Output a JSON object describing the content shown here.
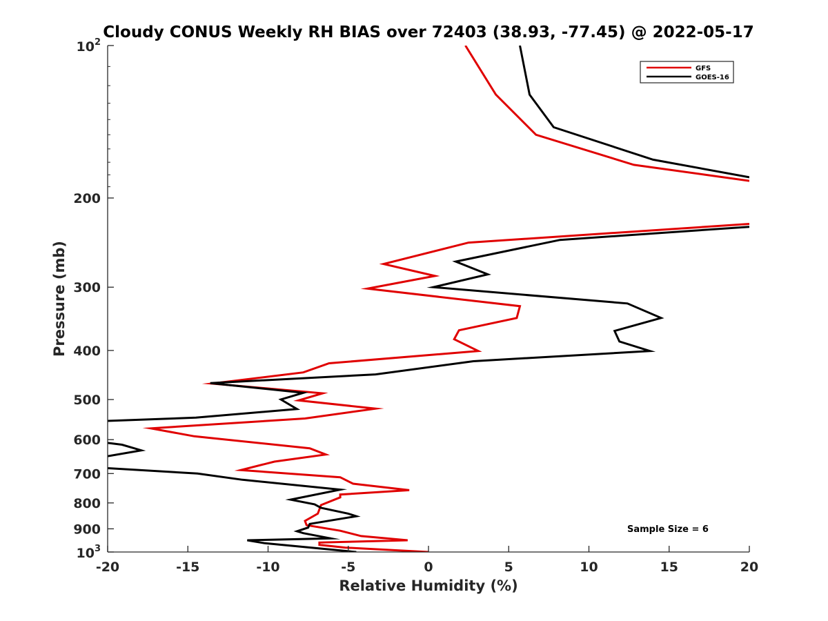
{
  "chart_data": {
    "type": "line",
    "title": "Cloudy CONUS Weekly RH BIAS over 72403 (38.93, -77.45) @ 2022-05-17",
    "xlabel": "Relative Humidity (%)",
    "ylabel": "Pressure (mb)",
    "xlim": [
      -20,
      20
    ],
    "ylim": [
      100,
      1000
    ],
    "yscale": "log",
    "y_reversed": true,
    "grid": false,
    "legend_position": "top-right",
    "x_ticks": [
      "-20",
      "-15",
      "-10",
      "-5",
      "0",
      "5",
      "10",
      "15",
      "20"
    ],
    "y_ticks": [
      {
        "value": 100,
        "base": "10",
        "exp": "2"
      },
      {
        "value": 200,
        "base": "200",
        "exp": ""
      },
      {
        "value": 300,
        "base": "300",
        "exp": ""
      },
      {
        "value": 400,
        "base": "400",
        "exp": ""
      },
      {
        "value": 500,
        "base": "500",
        "exp": ""
      },
      {
        "value": 600,
        "base": "600",
        "exp": ""
      },
      {
        "value": 700,
        "base": "700",
        "exp": ""
      },
      {
        "value": 800,
        "base": "800",
        "exp": ""
      },
      {
        "value": 900,
        "base": "900",
        "exp": ""
      },
      {
        "value": 1000,
        "base": "10",
        "exp": "3"
      }
    ],
    "annotation": "Sample Size = 6",
    "series": [
      {
        "name": "GFS",
        "color": "#e00000",
        "segments": [
          [
            {
              "x": 2.3,
              "y": 100
            },
            {
              "x": 4.2,
              "y": 125
            },
            {
              "x": 6.7,
              "y": 150
            },
            {
              "x": 12.8,
              "y": 172
            },
            {
              "x": 20,
              "y": 185
            }
          ],
          [
            {
              "x": 20,
              "y": 225
            },
            {
              "x": 2.5,
              "y": 245
            },
            {
              "x": -2.8,
              "y": 270
            },
            {
              "x": 0.4,
              "y": 285
            },
            {
              "x": -3.8,
              "y": 302
            },
            {
              "x": 5.7,
              "y": 327
            },
            {
              "x": 5.5,
              "y": 345
            },
            {
              "x": 1.9,
              "y": 365
            },
            {
              "x": 1.6,
              "y": 380
            },
            {
              "x": 3.1,
              "y": 401
            },
            {
              "x": -6.2,
              "y": 424
            },
            {
              "x": -7.8,
              "y": 442
            },
            {
              "x": -13.5,
              "y": 465
            },
            {
              "x": -6.6,
              "y": 486
            },
            {
              "x": -8.1,
              "y": 502
            },
            {
              "x": -3.3,
              "y": 521
            },
            {
              "x": -7.7,
              "y": 545
            },
            {
              "x": -17.3,
              "y": 570
            },
            {
              "x": -14.6,
              "y": 591
            },
            {
              "x": -7.4,
              "y": 624
            },
            {
              "x": -6.4,
              "y": 642
            },
            {
              "x": -9.6,
              "y": 663
            },
            {
              "x": -11.7,
              "y": 689
            },
            {
              "x": -5.5,
              "y": 712
            },
            {
              "x": -4.7,
              "y": 733
            },
            {
              "x": -1.2,
              "y": 755
            },
            {
              "x": -5.5,
              "y": 770
            },
            {
              "x": -5.5,
              "y": 780
            },
            {
              "x": -6.7,
              "y": 808
            },
            {
              "x": -6.9,
              "y": 840
            },
            {
              "x": -7.7,
              "y": 868
            },
            {
              "x": -7.6,
              "y": 885
            },
            {
              "x": -5.5,
              "y": 908
            },
            {
              "x": -4.2,
              "y": 930
            },
            {
              "x": -1.3,
              "y": 948
            },
            {
              "x": -6.8,
              "y": 958
            },
            {
              "x": -6.8,
              "y": 968
            },
            {
              "x": -5.2,
              "y": 980
            },
            {
              "x": 0,
              "y": 1000
            }
          ]
        ]
      },
      {
        "name": "GOES-16",
        "color": "#000000",
        "segments": [
          [
            {
              "x": 5.7,
              "y": 100
            },
            {
              "x": 6.3,
              "y": 125
            },
            {
              "x": 7.8,
              "y": 145
            },
            {
              "x": 14,
              "y": 168
            },
            {
              "x": 20,
              "y": 182
            }
          ],
          [
            {
              "x": 20,
              "y": 228
            },
            {
              "x": 8.2,
              "y": 242
            },
            {
              "x": 1.7,
              "y": 267
            },
            {
              "x": 3.7,
              "y": 283
            },
            {
              "x": 0.3,
              "y": 300
            },
            {
              "x": 12.4,
              "y": 323
            },
            {
              "x": 14.5,
              "y": 345
            },
            {
              "x": 11.6,
              "y": 366
            },
            {
              "x": 11.9,
              "y": 384
            },
            {
              "x": 13.8,
              "y": 401
            },
            {
              "x": 2.8,
              "y": 420
            },
            {
              "x": -3.3,
              "y": 446
            },
            {
              "x": -13.6,
              "y": 464
            },
            {
              "x": -7.8,
              "y": 485
            },
            {
              "x": -9.2,
              "y": 500
            },
            {
              "x": -8.2,
              "y": 522
            },
            {
              "x": -14.5,
              "y": 543
            },
            {
              "x": -20,
              "y": 551
            }
          ],
          [
            {
              "x": -20,
              "y": 609
            },
            {
              "x": -19.1,
              "y": 614
            },
            {
              "x": -17.9,
              "y": 630
            },
            {
              "x": -20,
              "y": 647
            }
          ],
          [
            {
              "x": -20,
              "y": 683
            },
            {
              "x": -14.4,
              "y": 700
            },
            {
              "x": -11.6,
              "y": 720
            },
            {
              "x": -5.5,
              "y": 753
            },
            {
              "x": -8.6,
              "y": 788
            },
            {
              "x": -7.1,
              "y": 805
            },
            {
              "x": -6.7,
              "y": 818
            },
            {
              "x": -5,
              "y": 840
            },
            {
              "x": -4.5,
              "y": 850
            },
            {
              "x": -7.4,
              "y": 880
            },
            {
              "x": -7.5,
              "y": 895
            },
            {
              "x": -8.2,
              "y": 910
            },
            {
              "x": -7.8,
              "y": 918
            },
            {
              "x": -6.1,
              "y": 940
            },
            {
              "x": -11.3,
              "y": 948
            },
            {
              "x": -10.2,
              "y": 961
            },
            {
              "x": -4.5,
              "y": 1000
            }
          ]
        ]
      }
    ]
  }
}
